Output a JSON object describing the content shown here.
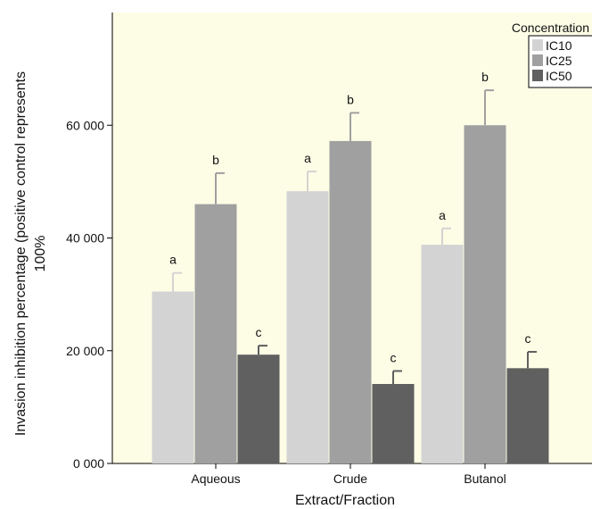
{
  "chart_data": {
    "type": "bar",
    "title": "",
    "xlabel": "Extract/Fraction",
    "ylabel_line1": "Invasion inhibition percentage (positive control represents",
    "ylabel_line2": "100%",
    "categories": [
      "Aqueous",
      "Crude",
      "Butanol"
    ],
    "ylim": [
      0,
      80000
    ],
    "yticks": [
      0,
      20000,
      40000,
      60000
    ],
    "ytick_labels": [
      "0 000",
      "20 000",
      "40 000",
      "60 000"
    ],
    "legend": {
      "title": "Concentration",
      "position": "top-right"
    },
    "background": "#fdfde6",
    "series": [
      {
        "name": "IC10",
        "color": "#d3d3d3",
        "values": [
          30500,
          48300,
          38800
        ],
        "errors": [
          3300,
          3500,
          2900
        ],
        "letters": [
          "a",
          "a",
          "a"
        ]
      },
      {
        "name": "IC25",
        "color": "#a0a0a0",
        "values": [
          46000,
          57200,
          60000
        ],
        "errors": [
          5500,
          5000,
          6200
        ],
        "letters": [
          "b",
          "b",
          "b"
        ]
      },
      {
        "name": "IC50",
        "color": "#606060",
        "values": [
          19300,
          14100,
          16900
        ],
        "errors": [
          1600,
          2300,
          2900
        ],
        "letters": [
          "c",
          "c",
          "c"
        ]
      }
    ]
  }
}
